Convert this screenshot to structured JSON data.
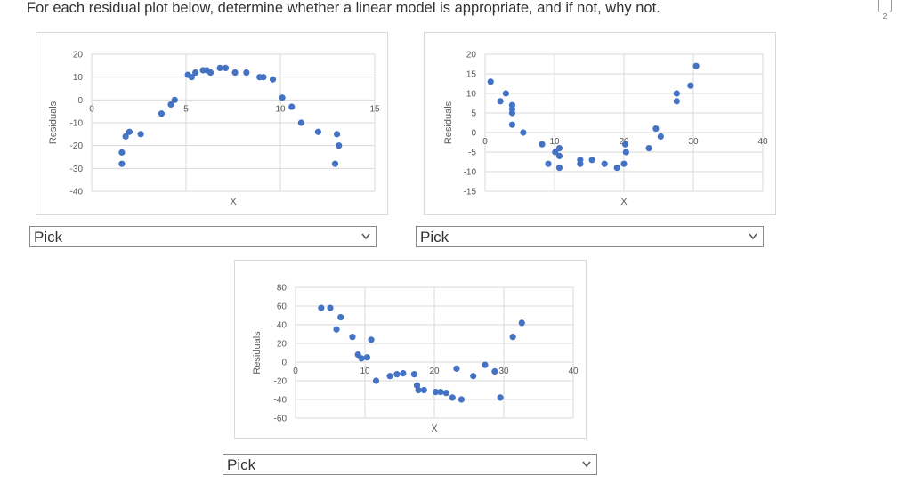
{
  "question": "For each residual plot below, determine whether a linear model is appropriate, and if not, why not.",
  "side_number": "2",
  "selects": [
    {
      "selected": "Pick",
      "options": [
        "Pick"
      ]
    },
    {
      "selected": "Pick",
      "options": [
        "Pick"
      ]
    },
    {
      "selected": "Pick",
      "options": [
        "Pick"
      ]
    }
  ],
  "colors": {
    "marker": "#4472c4",
    "grid": "#d9d9d9",
    "axis_text": "#595959"
  },
  "chart_data": [
    {
      "type": "scatter",
      "xlabel": "X",
      "ylabel": "Residuals",
      "xlim": [
        0,
        15
      ],
      "ylim": [
        -40,
        20
      ],
      "xticks": [
        0,
        5,
        10,
        15
      ],
      "yticks": [
        20,
        10,
        0,
        -10,
        -20,
        -30,
        -40
      ],
      "grid": true,
      "points": [
        [
          1.6,
          -23
        ],
        [
          1.6,
          -28
        ],
        [
          1.8,
          -16
        ],
        [
          2.0,
          -14
        ],
        [
          2.6,
          -15
        ],
        [
          3.7,
          -6
        ],
        [
          4.2,
          -2
        ],
        [
          4.4,
          0
        ],
        [
          5.1,
          11
        ],
        [
          5.3,
          10
        ],
        [
          5.5,
          12
        ],
        [
          5.9,
          13
        ],
        [
          6.1,
          13
        ],
        [
          6.3,
          12
        ],
        [
          6.8,
          14
        ],
        [
          7.1,
          14
        ],
        [
          7.6,
          12
        ],
        [
          8.2,
          12
        ],
        [
          8.9,
          10
        ],
        [
          9.1,
          10
        ],
        [
          9.6,
          9
        ],
        [
          10.1,
          1
        ],
        [
          10.6,
          -3
        ],
        [
          11.1,
          -10
        ],
        [
          12.0,
          -14
        ],
        [
          13.0,
          -15
        ],
        [
          13.1,
          -20
        ],
        [
          12.9,
          -28
        ]
      ]
    },
    {
      "type": "scatter",
      "xlabel": "X",
      "ylabel": "Residuals",
      "xlim": [
        0,
        40
      ],
      "ylim": [
        -15,
        20
      ],
      "xticks": [
        0,
        10,
        20,
        30,
        40
      ],
      "yticks": [
        20,
        15,
        10,
        5,
        0,
        -5,
        -10,
        -15
      ],
      "grid": true,
      "points": [
        [
          0.8,
          13
        ],
        [
          2.2,
          8
        ],
        [
          3.0,
          10
        ],
        [
          3.9,
          7
        ],
        [
          3.9,
          6
        ],
        [
          3.9,
          5
        ],
        [
          3.9,
          2
        ],
        [
          5.5,
          0
        ],
        [
          8.2,
          -3
        ],
        [
          9.1,
          -8
        ],
        [
          10.1,
          -5
        ],
        [
          10.7,
          -4
        ],
        [
          10.7,
          -6
        ],
        [
          10.7,
          -9
        ],
        [
          13.7,
          -7
        ],
        [
          13.7,
          -8
        ],
        [
          15.4,
          -7
        ],
        [
          17.2,
          -8
        ],
        [
          19.0,
          -9
        ],
        [
          20.0,
          -8
        ],
        [
          20.2,
          -3
        ],
        [
          20.3,
          -5
        ],
        [
          23.6,
          -4
        ],
        [
          24.6,
          1
        ],
        [
          25.3,
          -1
        ],
        [
          27.6,
          10
        ],
        [
          27.6,
          8
        ],
        [
          29.6,
          12
        ],
        [
          30.4,
          17
        ]
      ]
    },
    {
      "type": "scatter",
      "xlabel": "X",
      "ylabel": "Residuals",
      "xlim": [
        0,
        40
      ],
      "ylim": [
        -60,
        80
      ],
      "xticks": [
        0,
        10,
        20,
        30,
        40
      ],
      "yticks": [
        80,
        60,
        40,
        20,
        0,
        -20,
        -40,
        -60
      ],
      "grid": true,
      "points": [
        [
          3.7,
          58
        ],
        [
          5.0,
          58
        ],
        [
          5.9,
          35
        ],
        [
          6.5,
          48
        ],
        [
          8.2,
          27
        ],
        [
          9.0,
          8
        ],
        [
          9.5,
          4
        ],
        [
          10.3,
          5
        ],
        [
          10.9,
          24
        ],
        [
          11.6,
          -20
        ],
        [
          13.6,
          -15
        ],
        [
          14.6,
          -13
        ],
        [
          15.5,
          -12
        ],
        [
          17.1,
          -13
        ],
        [
          17.5,
          -25
        ],
        [
          17.7,
          -30
        ],
        [
          18.5,
          -30
        ],
        [
          20.2,
          -32
        ],
        [
          20.9,
          -32
        ],
        [
          21.7,
          -33
        ],
        [
          22.6,
          -38
        ],
        [
          23.2,
          -7
        ],
        [
          23.9,
          -40
        ],
        [
          25.6,
          -15
        ],
        [
          27.3,
          -3
        ],
        [
          28.7,
          -10
        ],
        [
          29.5,
          -38
        ],
        [
          31.3,
          27
        ],
        [
          32.6,
          42
        ]
      ]
    }
  ]
}
